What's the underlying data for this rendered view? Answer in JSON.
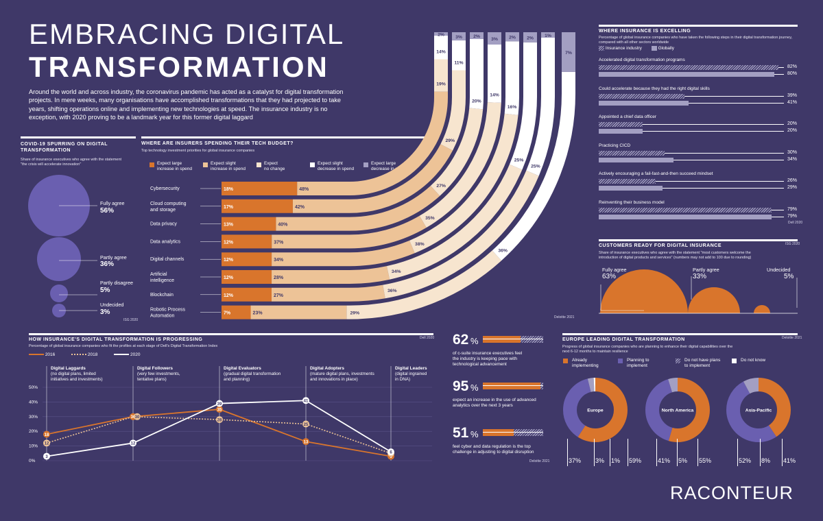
{
  "title": {
    "line1": "EMBRACING DIGITAL",
    "line2": "TRANSFORMATION"
  },
  "intro": "Around the world and across industry, the coronavirus pandemic has acted as a catalyst for digital transformation projects. In mere weeks, many organisations have accomplished transformations that they had projected to take years, shifting operations online and implementing new technologies at speed. The insurance industry is no exception, with 2020 proving to be a landmark year for this former digital laggard",
  "covid": {
    "title": "COVID-19 SPURRING ON DIGITAL TRANSFORMATION",
    "subtitle": "Share of insurance executives who agree with the statement \"the crisis will accelerate innovation\"",
    "source": "ISG 2020",
    "items": [
      {
        "label": "Fully agree",
        "value": "56%"
      },
      {
        "label": "Partly agree",
        "value": "36%"
      },
      {
        "label": "Partly disagree",
        "value": "5%"
      },
      {
        "label": "Undecided",
        "value": "3%"
      }
    ]
  },
  "budget": {
    "title": "WHERE ARE INSURERS SPENDING THEIR TECH BUDGET?",
    "subtitle": "Top technology investment priorities for global insurance companies",
    "source": "Deloitte 2021",
    "legend": [
      {
        "line1": "Expect large",
        "line2": "increase in spend",
        "color": "#d9752c"
      },
      {
        "line1": "Expect slight",
        "line2": "increase in spend",
        "color": "#edc397"
      },
      {
        "line1": "Expect",
        "line2": "no change",
        "color": "#f7e5cf"
      },
      {
        "line1": "Expect slight",
        "line2": "decrease in spend",
        "color": "#ffffff"
      },
      {
        "line1": "Expect large",
        "line2": "decrease in spend",
        "color": "#a39fc2"
      }
    ]
  },
  "chart_data": [
    {
      "type": "bar",
      "title": "WHERE ARE INSURERS SPENDING THEIR TECH BUDGET?",
      "categories": [
        "Cybersecurity",
        "Cloud computing and storage",
        "Data privacy",
        "Data analytics",
        "Digital channels",
        "Artificial intelligence",
        "Blockchain",
        "Robotic Process Automation"
      ],
      "series": [
        {
          "name": "Expect large increase in spend",
          "values": [
            18,
            17,
            13,
            12,
            12,
            12,
            12,
            7
          ]
        },
        {
          "name": "Expect slight increase in spend",
          "values": [
            48,
            42,
            40,
            37,
            34,
            28,
            27,
            23
          ]
        },
        {
          "name": "Expect no change",
          "values": [
            19,
            29,
            27,
            35,
            38,
            34,
            36,
            29
          ]
        },
        {
          "name": "Expect slight decrease in spend",
          "values": [
            14,
            11,
            20,
            14,
            16,
            25,
            25,
            36
          ]
        },
        {
          "name": "Expect large decrease in spend",
          "values": [
            2,
            3,
            2,
            3,
            2,
            2,
            1,
            7
          ]
        }
      ]
    },
    {
      "type": "bar",
      "title": "WHERE INSURANCE IS EXCELLING",
      "categories": [
        "Accelerated digital transformation programs",
        "Could accelerate because they had the right digital skills",
        "Appointed a chief data officer",
        "Practicing CICD",
        "Actively encouraging a fail-fast-and-then succeed mindset",
        "Reinventing their business model"
      ],
      "series": [
        {
          "name": "Insurance industry",
          "values": [
            82,
            39,
            20,
            30,
            26,
            79
          ]
        },
        {
          "name": "Globally",
          "values": [
            80,
            41,
            20,
            34,
            29,
            79
          ]
        }
      ]
    },
    {
      "type": "line",
      "title": "HOW INSURANCE'S DIGITAL TRANSFORMATION IS PROGRESSING",
      "categories": [
        "Digital Laggards",
        "Digital Followers",
        "Digital Evaluators",
        "Digital Adopters",
        "Digital Leaders"
      ],
      "ylim": [
        0,
        50
      ],
      "yticks": [
        "0%",
        "10%",
        "20%",
        "30%",
        "40%",
        "50%"
      ],
      "series": [
        {
          "name": "2016",
          "values": [
            18,
            30,
            35,
            13,
            3
          ]
        },
        {
          "name": "2018",
          "values": [
            12,
            30,
            28,
            25,
            5
          ]
        },
        {
          "name": "2020",
          "values": [
            3,
            12,
            39,
            41,
            6
          ]
        }
      ]
    },
    {
      "type": "pie",
      "title": "EUROPE LEADING DIGITAL TRANSFORMATION",
      "categories": [
        "Already implementing",
        "Planning to implement",
        "Do not have plans to implement",
        "Do not know"
      ],
      "series": [
        {
          "name": "Europe",
          "values": [
            59,
            37,
            3,
            1
          ]
        },
        {
          "name": "North America",
          "values": [
            55,
            41,
            5,
            0
          ]
        },
        {
          "name": "Asia-Pacific",
          "values": [
            41,
            52,
            8,
            0
          ]
        }
      ]
    },
    {
      "type": "bar",
      "title": "CUSTOMERS READY FOR DIGITAL INSURANCE",
      "categories": [
        "Fully agree",
        "Partly agree",
        "Undecided"
      ],
      "values": [
        63,
        33,
        5
      ]
    }
  ],
  "excelling": {
    "title": "WHERE INSURANCE IS EXCELLING",
    "subtitle": "Percentage of global insurance companies who have taken the following steps in their digital transformation journey, compared with all other sectors worldwide",
    "legend": [
      "Insurance industry",
      "Globally"
    ],
    "source": "Dell 2020",
    "items": [
      {
        "label": "Accelerated digital transformation programs",
        "ins": "82%",
        "glob": "80%"
      },
      {
        "label": "Could accelerate because they had the right digital skills",
        "ins": "39%",
        "glob": "41%"
      },
      {
        "label": "Appointed a chief data officer",
        "ins": "20%",
        "glob": "20%"
      },
      {
        "label": "Practicing CICD",
        "ins": "30%",
        "glob": "34%"
      },
      {
        "label": "Actively encouraging a fail-fast-and-then succeed mindset",
        "ins": "26%",
        "glob": "29%"
      },
      {
        "label": "Reinventing their business model",
        "ins": "79%",
        "glob": "79%"
      }
    ]
  },
  "customers": {
    "title": "CUSTOMERS READY FOR DIGITAL INSURANCE",
    "source": "ISG 2020",
    "subtitle": "Share of insurance executives who agree with the statement \"most customers welcome the introduction of digital products and services\" (numbers may not add to 100 due to rounding)",
    "items": [
      {
        "label": "Fully agree",
        "value": "63%"
      },
      {
        "label": "Partly agree",
        "value": "33%"
      },
      {
        "label": "Undecided",
        "value": "5%"
      }
    ]
  },
  "progress": {
    "title": "HOW INSURANCE'S DIGITAL TRANSFORMATION IS PROGRESSING",
    "source": "Dell 2020",
    "subtitle": "Percentage of global insurance companies who fit the profiles at each stage of Dell's Digital Transformation Index",
    "legend": [
      "2016",
      "2018",
      "2020"
    ],
    "stages": [
      {
        "name": "Digital Laggards",
        "desc1": "(no digital plans, limited",
        "desc2": "initiatives and investments)"
      },
      {
        "name": "Digital Followers",
        "desc1": "(very few investments,",
        "desc2": "tentative plans)"
      },
      {
        "name": "Digital Evaluators",
        "desc1": "(gradual digital transformation",
        "desc2": "and planning)"
      },
      {
        "name": "Digital Adopters",
        "desc1": "(mature digital plans, investments",
        "desc2": "and innovations in place)"
      },
      {
        "name": "Digital Leaders",
        "desc1": "(digital ingrained",
        "desc2": "in DNA)"
      }
    ]
  },
  "stats": {
    "source": "Deloitte 2021",
    "items": [
      {
        "big": "62",
        "pct": "%",
        "text1": "of c-suite insurance executives feel",
        "text2": "the industry is keeping pace with",
        "text3": "technological advancement"
      },
      {
        "big": "95",
        "pct": "%",
        "text1": "expect an increase in the use of advanced",
        "text2": "analytics over the next 3 years",
        "text3": ""
      },
      {
        "big": "51",
        "pct": "%",
        "text1": "feel cyber and data regulation is the top",
        "text2": "challenge in adjusting to digital disruption",
        "text3": ""
      }
    ]
  },
  "europe": {
    "title": "EUROPE LEADING DIGITAL TRANSFORMATION",
    "source": "Deloitte 2021",
    "subtitle": "Progress of global insurance companies who are planning to enhance their digital capabilities over the next 6-12 months to maintain resilience",
    "legend": [
      {
        "line1": "Already",
        "line2": "implementing"
      },
      {
        "line1": "Planning to",
        "line2": "implement"
      },
      {
        "line1": "Do not have plans",
        "line2": "to implement"
      },
      {
        "line1": "Do not know",
        "line2": ""
      }
    ],
    "regions": [
      {
        "name": "Europe",
        "labels": [
          "37%",
          "3%",
          "1%",
          "59%"
        ]
      },
      {
        "name": "North America",
        "labels": [
          "41%",
          "5%",
          "55%"
        ]
      },
      {
        "name": "Asia-Pacific",
        "labels": [
          "52%",
          "8%",
          "41%"
        ]
      }
    ]
  },
  "brand": "RACONTEUR",
  "colors": {
    "bg": "#3f3868",
    "orange": "#d9752c",
    "lightorange": "#edc397",
    "cream": "#f7e5cf",
    "lavender": "#6a5fb0",
    "grey": "#a39fc2"
  }
}
